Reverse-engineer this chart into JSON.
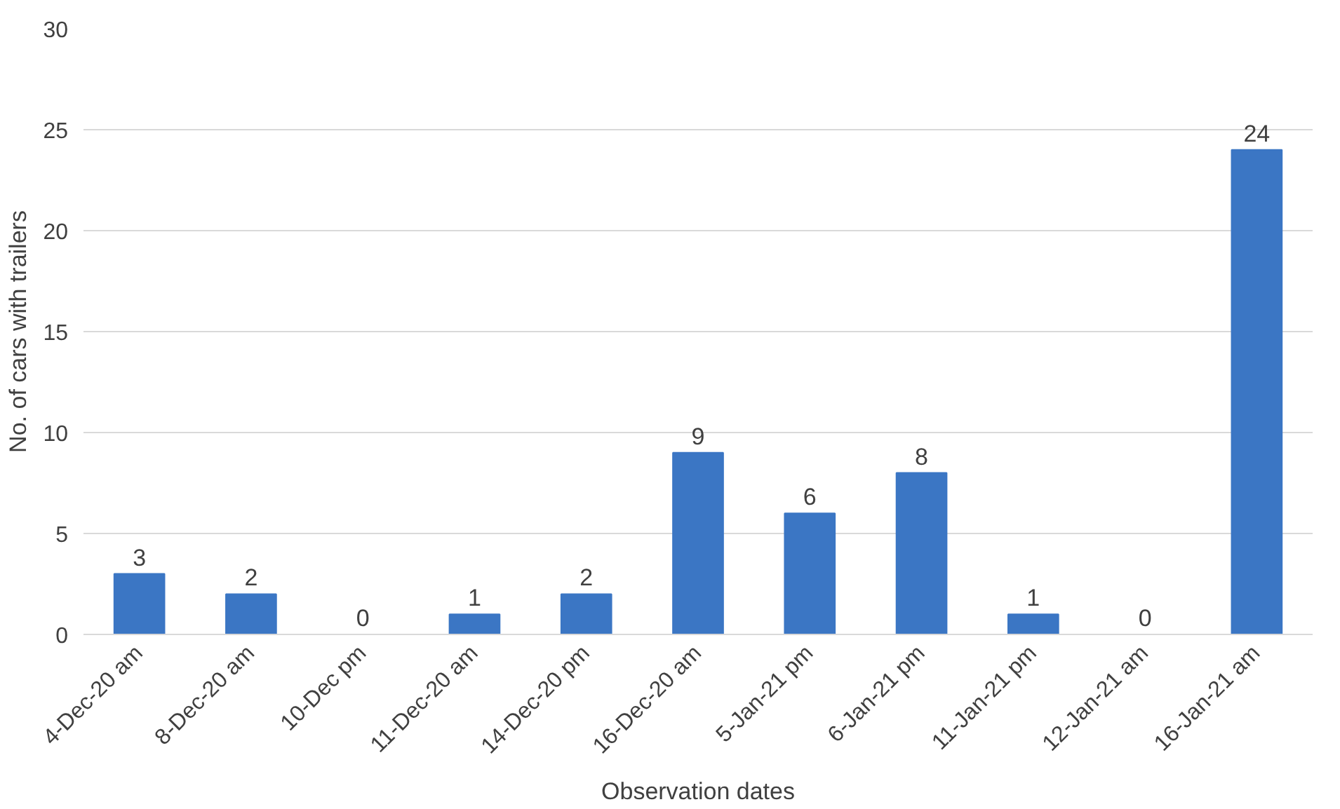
{
  "chart_data": {
    "type": "bar",
    "xlabel": "Observation dates",
    "ylabel": "No. of cars with trailers",
    "categories": [
      "4-Dec-20 am",
      "8-Dec-20 am",
      "10-Dec pm",
      "11-Dec-20 am",
      "14-Dec-20 pm",
      "16-Dec-20 am",
      "5-Jan-21 pm",
      "6-Jan-21 pm",
      "11-Jan-21 pm",
      "12-Jan-21 am",
      "16-Jan-21 am"
    ],
    "values": [
      3,
      2,
      0,
      1,
      2,
      9,
      6,
      8,
      1,
      0,
      24
    ],
    "color": "#3b76c4",
    "ylim": [
      0,
      30
    ],
    "yticks": [
      0,
      5,
      10,
      15,
      20,
      25,
      30
    ],
    "grid": "y",
    "data_labels": true
  }
}
